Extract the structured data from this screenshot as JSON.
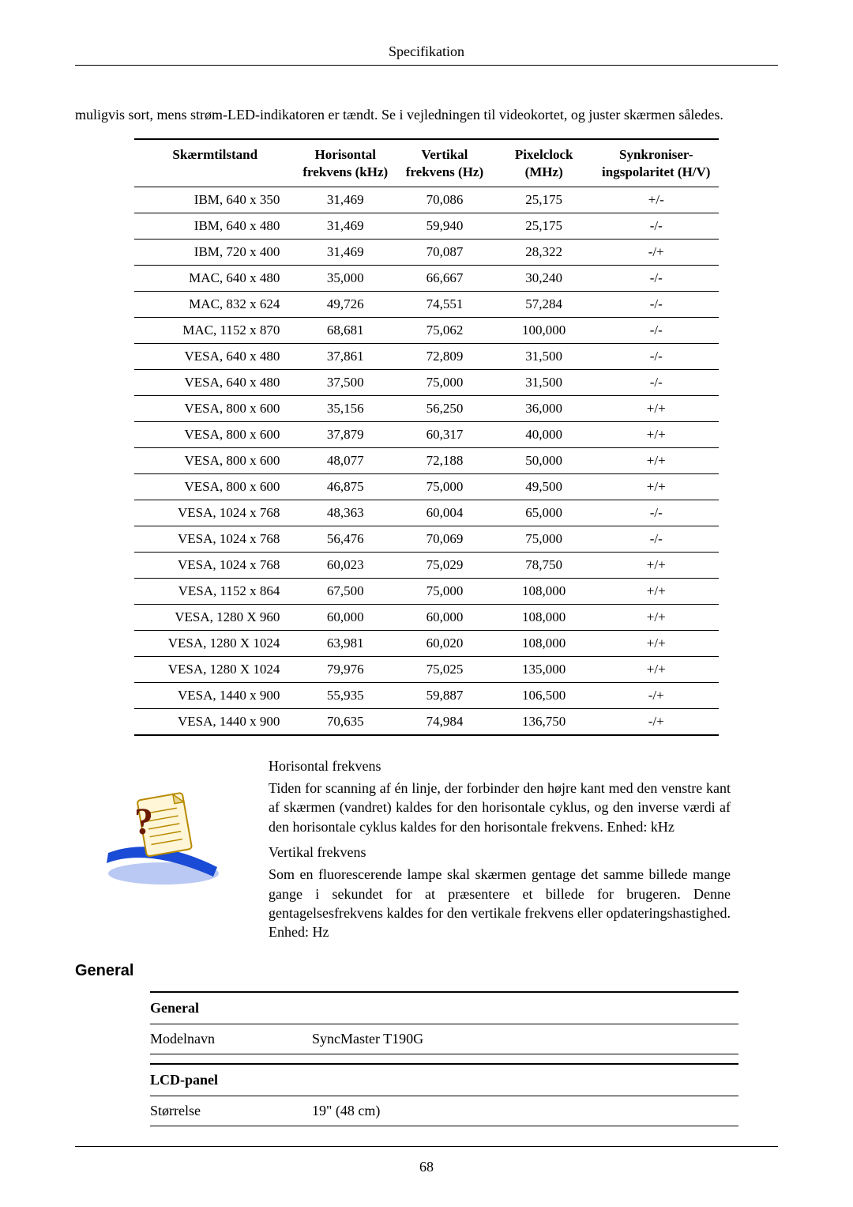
{
  "header": {
    "title": "Specifikation"
  },
  "intro": "muligvis sort, mens strøm-LED-indikatoren er tændt. Se i vejledningen til videokortet, og juster skærmen således.",
  "timing": {
    "headers": {
      "mode": "Skærmtilstand",
      "hfreq": "Horisontal frekvens (kHz)",
      "vfreq": "Vertikal frekvens (Hz)",
      "pclock": "Pixelclock (MHz)",
      "polarity": "Synkroniser-ingspolaritet (H/V)"
    },
    "rows": [
      {
        "mode": "IBM, 640 x 350",
        "hf": "31,469",
        "vf": "70,086",
        "pc": "25,175",
        "sp": "+/-"
      },
      {
        "mode": "IBM, 640 x 480",
        "hf": "31,469",
        "vf": "59,940",
        "pc": "25,175",
        "sp": "-/-"
      },
      {
        "mode": "IBM, 720 x 400",
        "hf": "31,469",
        "vf": "70,087",
        "pc": "28,322",
        "sp": "-/+"
      },
      {
        "mode": "MAC, 640 x 480",
        "hf": "35,000",
        "vf": "66,667",
        "pc": "30,240",
        "sp": "-/-"
      },
      {
        "mode": "MAC, 832 x 624",
        "hf": "49,726",
        "vf": "74,551",
        "pc": "57,284",
        "sp": "-/-"
      },
      {
        "mode": "MAC, 1152 x 870",
        "hf": "68,681",
        "vf": "75,062",
        "pc": "100,000",
        "sp": "-/-"
      },
      {
        "mode": "VESA, 640 x 480",
        "hf": "37,861",
        "vf": "72,809",
        "pc": "31,500",
        "sp": "-/-"
      },
      {
        "mode": "VESA, 640 x 480",
        "hf": "37,500",
        "vf": "75,000",
        "pc": "31,500",
        "sp": "-/-"
      },
      {
        "mode": "VESA, 800 x 600",
        "hf": "35,156",
        "vf": "56,250",
        "pc": "36,000",
        "sp": "+/+"
      },
      {
        "mode": "VESA, 800 x 600",
        "hf": "37,879",
        "vf": "60,317",
        "pc": "40,000",
        "sp": "+/+"
      },
      {
        "mode": "VESA, 800 x 600",
        "hf": "48,077",
        "vf": "72,188",
        "pc": "50,000",
        "sp": "+/+"
      },
      {
        "mode": "VESA, 800 x 600",
        "hf": "46,875",
        "vf": "75,000",
        "pc": "49,500",
        "sp": "+/+"
      },
      {
        "mode": "VESA, 1024 x 768",
        "hf": "48,363",
        "vf": "60,004",
        "pc": "65,000",
        "sp": "-/-"
      },
      {
        "mode": "VESA, 1024 x 768",
        "hf": "56,476",
        "vf": "70,069",
        "pc": "75,000",
        "sp": "-/-"
      },
      {
        "mode": "VESA, 1024 x 768",
        "hf": "60,023",
        "vf": "75,029",
        "pc": "78,750",
        "sp": "+/+"
      },
      {
        "mode": "VESA, 1152 x 864",
        "hf": "67,500",
        "vf": "75,000",
        "pc": "108,000",
        "sp": "+/+"
      },
      {
        "mode": "VESA, 1280 X 960",
        "hf": "60,000",
        "vf": "60,000",
        "pc": "108,000",
        "sp": "+/+"
      },
      {
        "mode": "VESA, 1280 X 1024",
        "hf": "63,981",
        "vf": "60,020",
        "pc": "108,000",
        "sp": "+/+"
      },
      {
        "mode": "VESA, 1280 X 1024",
        "hf": "79,976",
        "vf": "75,025",
        "pc": "135,000",
        "sp": "+/+"
      },
      {
        "mode": "VESA, 1440 x 900",
        "hf": "55,935",
        "vf": "59,887",
        "pc": "106,500",
        "sp": "-/+"
      },
      {
        "mode": "VESA, 1440 x 900",
        "hf": "70,635",
        "vf": "74,984",
        "pc": "136,750",
        "sp": "-/+"
      }
    ]
  },
  "info": {
    "hf_title": "Horisontal frekvens",
    "hf_body": "Tiden for scanning af én linje, der forbinder den højre kant med den venstre kant af skærmen (vandret) kaldes for den horisontale cyklus, og den inverse værdi af den horisontale cyklus kaldes for den horisontale frekvens. Enhed: kHz",
    "vf_title": "Vertikal frekvens",
    "vf_body": "Som en fluorescerende lampe skal skærmen gentage det samme billede mange gange i sekundet for at præsentere et billede for brugeren. Denne gentagelsesfrekvens kaldes for den vertikale frekvens eller opdateringshastighed. Enhed: Hz"
  },
  "icon": {
    "page_fill": "#fff6d8",
    "page_stroke": "#b88a00",
    "swoosh_fill": "#1a4bd6",
    "qmark_fill": "#6b1a00"
  },
  "general": {
    "heading": "General",
    "groups": [
      {
        "group": "General",
        "rows": [
          {
            "label": "Modelnavn",
            "value": "SyncMaster T190G"
          }
        ]
      },
      {
        "group": "LCD-panel",
        "rows": [
          {
            "label": "Størrelse",
            "value": "19\" (48 cm)"
          }
        ]
      }
    ]
  },
  "page_number": "68"
}
